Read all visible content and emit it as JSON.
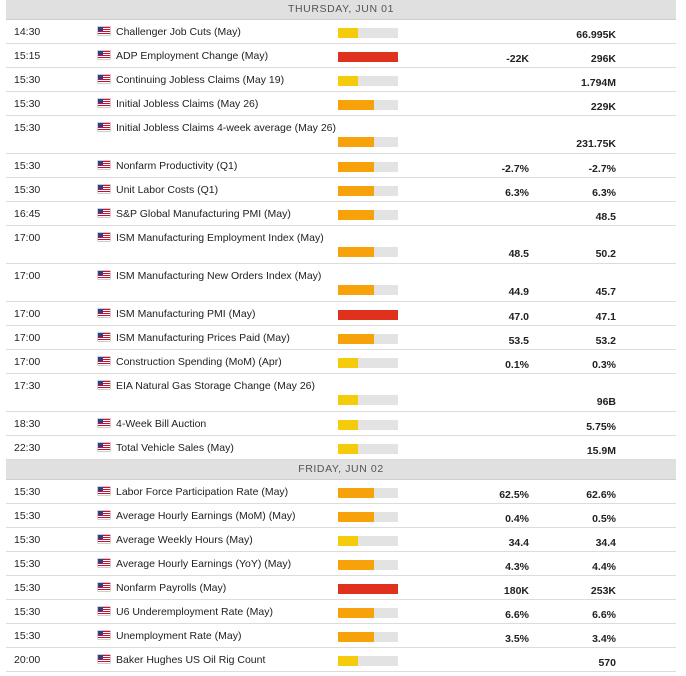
{
  "colors": {
    "low": "#f5cc0c",
    "medium": "#f7a10b",
    "high": "#e0301e"
  },
  "days": [
    {
      "label": "THURSDAY, JUN 01",
      "events": [
        {
          "time": "14:30",
          "name": "Challenger Job Cuts (May)",
          "impact": "low",
          "level": 0.33,
          "actual": "",
          "consensus": "66.995K",
          "tall": false
        },
        {
          "time": "15:15",
          "name": "ADP Employment Change (May)",
          "impact": "high",
          "level": 1.0,
          "actual": "-22K",
          "consensus": "296K",
          "tall": false
        },
        {
          "time": "15:30",
          "name": "Continuing Jobless Claims (May 19)",
          "impact": "low",
          "level": 0.33,
          "actual": "",
          "consensus": "1.794M",
          "tall": false
        },
        {
          "time": "15:30",
          "name": "Initial Jobless Claims (May 26)",
          "impact": "medium",
          "level": 0.6,
          "actual": "",
          "consensus": "229K",
          "tall": false
        },
        {
          "time": "15:30",
          "name": "Initial Jobless Claims 4-week average (May 26)",
          "impact": "medium",
          "level": 0.6,
          "actual": "",
          "consensus": "231.75K",
          "tall": true
        },
        {
          "time": "15:30",
          "name": "Nonfarm Productivity (Q1)",
          "impact": "medium",
          "level": 0.6,
          "actual": "-2.7%",
          "consensus": "-2.7%",
          "tall": false
        },
        {
          "time": "15:30",
          "name": "Unit Labor Costs (Q1)",
          "impact": "medium",
          "level": 0.6,
          "actual": "6.3%",
          "consensus": "6.3%",
          "tall": false
        },
        {
          "time": "16:45",
          "name": "S&P Global Manufacturing PMI (May)",
          "impact": "medium",
          "level": 0.6,
          "actual": "",
          "consensus": "48.5",
          "tall": false
        },
        {
          "time": "17:00",
          "name": "ISM Manufacturing Employment Index (May)",
          "impact": "medium",
          "level": 0.6,
          "actual": "48.5",
          "consensus": "50.2",
          "tall": true
        },
        {
          "time": "17:00",
          "name": "ISM Manufacturing New Orders Index (May)",
          "impact": "medium",
          "level": 0.6,
          "actual": "44.9",
          "consensus": "45.7",
          "tall": true
        },
        {
          "time": "17:00",
          "name": "ISM Manufacturing PMI (May)",
          "impact": "high",
          "level": 1.0,
          "actual": "47.0",
          "consensus": "47.1",
          "tall": false
        },
        {
          "time": "17:00",
          "name": "ISM Manufacturing Prices Paid (May)",
          "impact": "medium",
          "level": 0.6,
          "actual": "53.5",
          "consensus": "53.2",
          "tall": false
        },
        {
          "time": "17:00",
          "name": "Construction Spending (MoM) (Apr)",
          "impact": "low",
          "level": 0.33,
          "actual": "0.1%",
          "consensus": "0.3%",
          "tall": false
        },
        {
          "time": "17:30",
          "name": "EIA Natural Gas Storage Change (May 26)",
          "impact": "low",
          "level": 0.33,
          "actual": "",
          "consensus": "96B",
          "tall": true
        },
        {
          "time": "18:30",
          "name": "4-Week Bill Auction",
          "impact": "low",
          "level": 0.33,
          "actual": "",
          "consensus": "5.75%",
          "tall": false
        },
        {
          "time": "22:30",
          "name": "Total Vehicle Sales (May)",
          "impact": "low",
          "level": 0.33,
          "actual": "",
          "consensus": "15.9M",
          "tall": false
        }
      ]
    },
    {
      "label": "FRIDAY, JUN 02",
      "events": [
        {
          "time": "15:30",
          "name": "Labor Force Participation Rate (May)",
          "impact": "medium",
          "level": 0.6,
          "actual": "62.5%",
          "consensus": "62.6%",
          "tall": false
        },
        {
          "time": "15:30",
          "name": "Average Hourly Earnings (MoM) (May)",
          "impact": "medium",
          "level": 0.6,
          "actual": "0.4%",
          "consensus": "0.5%",
          "tall": false
        },
        {
          "time": "15:30",
          "name": "Average Weekly Hours (May)",
          "impact": "low",
          "level": 0.33,
          "actual": "34.4",
          "consensus": "34.4",
          "tall": false
        },
        {
          "time": "15:30",
          "name": "Average Hourly Earnings (YoY) (May)",
          "impact": "medium",
          "level": 0.6,
          "actual": "4.3%",
          "consensus": "4.4%",
          "tall": false
        },
        {
          "time": "15:30",
          "name": "Nonfarm Payrolls (May)",
          "impact": "high",
          "level": 1.0,
          "actual": "180K",
          "consensus": "253K",
          "tall": false
        },
        {
          "time": "15:30",
          "name": "U6 Underemployment Rate (May)",
          "impact": "medium",
          "level": 0.6,
          "actual": "6.6%",
          "consensus": "6.6%",
          "tall": false
        },
        {
          "time": "15:30",
          "name": "Unemployment Rate (May)",
          "impact": "medium",
          "level": 0.6,
          "actual": "3.5%",
          "consensus": "3.4%",
          "tall": false
        },
        {
          "time": "20:00",
          "name": "Baker Hughes US Oil Rig Count",
          "impact": "low",
          "level": 0.33,
          "actual": "",
          "consensus": "570",
          "tall": false
        }
      ]
    }
  ]
}
